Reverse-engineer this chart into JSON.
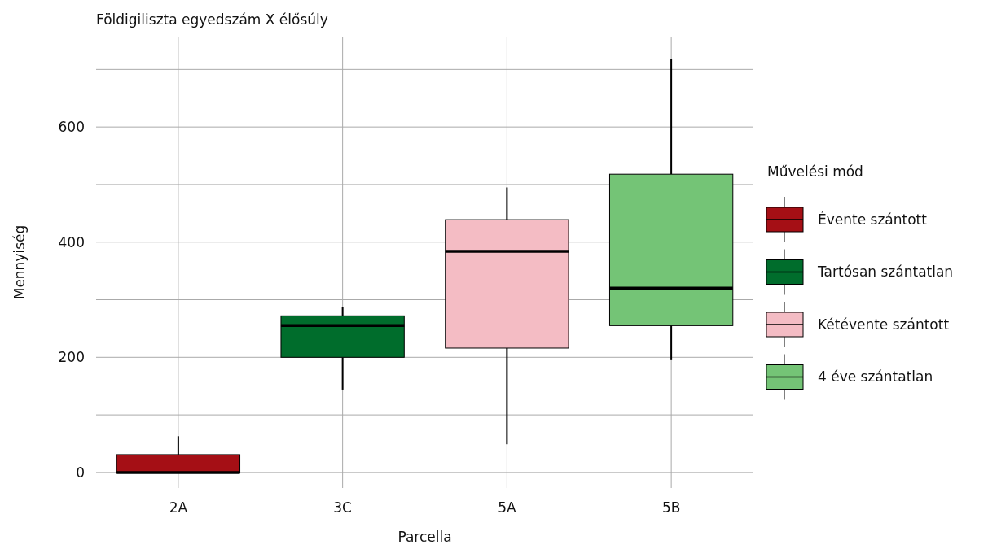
{
  "chart_data": {
    "type": "box",
    "title": "Földigiliszta egyedszám X élősúly",
    "xlabel": "Parcella",
    "ylabel": "Mennyiség",
    "legend_title": "Művelési mód",
    "categories": [
      "2A",
      "3C",
      "5A",
      "5B"
    ],
    "ylim": [
      -27,
      757
    ],
    "yticks": [
      0,
      {
        "value": 100,
        "label": null
      },
      200,
      {
        "value": 300,
        "label": null
      },
      400,
      {
        "value": 500,
        "label": null
      },
      600,
      {
        "value": 700,
        "label": null
      }
    ],
    "grid": true,
    "legend": "right",
    "series": [
      {
        "name": "Évente szántott",
        "color": "#a50f15",
        "boxes": [
          {
            "low": 0,
            "q1": 0,
            "median": 0,
            "q3": 31,
            "high": 63
          },
          null,
          null,
          null
        ]
      },
      {
        "name": "Tartósan szántatlan",
        "color": "#006d2c",
        "boxes": [
          null,
          {
            "low": 144,
            "q1": 200,
            "median": 255,
            "q3": 272,
            "high": 287
          },
          null,
          null
        ]
      },
      {
        "name": "Kétévente szántott",
        "color": "#f4bcc4",
        "boxes": [
          null,
          null,
          {
            "low": 49,
            "q1": 216,
            "median": 384,
            "q3": 439,
            "high": 495
          },
          null
        ]
      },
      {
        "name": "4 éve szántatlan",
        "color": "#74c476",
        "boxes": [
          null,
          null,
          null,
          {
            "low": 195,
            "q1": 255,
            "median": 320,
            "q3": 518,
            "high": 718
          }
        ]
      }
    ]
  }
}
